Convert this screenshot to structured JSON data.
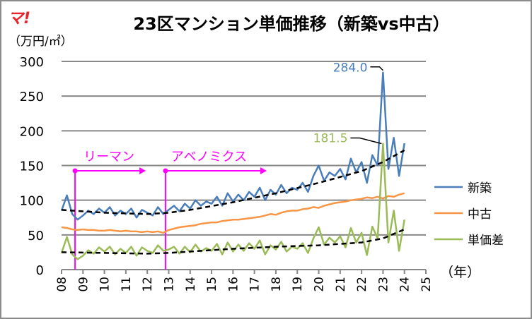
{
  "logo": "マ!",
  "chart_data": {
    "type": "line",
    "title": "23区マンション単価推移（新築vs中古）",
    "ylabel": "（万円/㎡）",
    "xlabel": "（年）",
    "ylim": [
      0,
      300
    ],
    "yticks": [
      0,
      50,
      100,
      150,
      200,
      250,
      300
    ],
    "xlim": [
      2008,
      2025
    ],
    "xtick_labels": [
      "08",
      "09",
      "10",
      "11",
      "12",
      "13",
      "14",
      "15",
      "16",
      "17",
      "18",
      "19",
      "20",
      "21",
      "22",
      "23",
      "24",
      "25"
    ],
    "grid": true,
    "legend_position": "right",
    "x_start": 2008,
    "x_step": 0.25,
    "series": [
      {
        "name": "新築",
        "color": "#4a7ebb",
        "values": [
          85,
          107,
          80,
          72,
          78,
          85,
          80,
          88,
          82,
          90,
          78,
          85,
          80,
          88,
          75,
          86,
          82,
          78,
          90,
          80,
          86,
          92,
          84,
          95,
          88,
          100,
          92,
          98,
          95,
          105,
          92,
          110,
          98,
          108,
          100,
          112,
          105,
          118,
          100,
          115,
          108,
          122,
          110,
          118,
          115,
          125,
          112,
          135,
          150,
          128,
          140,
          135,
          145,
          130,
          160,
          140,
          155,
          125,
          165,
          150,
          284,
          145,
          190,
          135,
          182
        ]
      },
      {
        "name": "中古",
        "color": "#f79646",
        "values": [
          61,
          60,
          58,
          57,
          58,
          57,
          57,
          56,
          56,
          57,
          56,
          55,
          56,
          55,
          55,
          54,
          55,
          54,
          55,
          53,
          57,
          59,
          61,
          62,
          63,
          64,
          66,
          67,
          68,
          68,
          70,
          71,
          72,
          72,
          73,
          74,
          75,
          76,
          78,
          80,
          79,
          82,
          84,
          85,
          85,
          87,
          88,
          90,
          89,
          92,
          94,
          96,
          97,
          98,
          100,
          101,
          102,
          104,
          103,
          105,
          102.5,
          106,
          105,
          108,
          110
        ]
      },
      {
        "name": "単価差",
        "color": "#9bbb59",
        "values": [
          24,
          47,
          22,
          15,
          20,
          28,
          23,
          32,
          26,
          33,
          22,
          30,
          24,
          33,
          20,
          32,
          27,
          24,
          35,
          27,
          29,
          33,
          23,
          33,
          25,
          36,
          26,
          31,
          27,
          37,
          22,
          39,
          26,
          36,
          27,
          38,
          30,
          42,
          22,
          35,
          29,
          40,
          26,
          33,
          30,
          38,
          24,
          45,
          61,
          36,
          46,
          39,
          48,
          32,
          60,
          39,
          53,
          21,
          62,
          45,
          181.5,
          39,
          85,
          27,
          72
        ]
      }
    ],
    "trendlines": [
      {
        "of": "新築",
        "x": [
          2008,
          2010,
          2012,
          2013,
          2014,
          2016,
          2018,
          2020,
          2022,
          2023,
          2024
        ],
        "values": [
          86,
          82,
          80,
          82,
          86,
          97,
          110,
          125,
          142,
          155,
          172
        ]
      },
      {
        "of": "単価差",
        "x": [
          2008,
          2010,
          2012,
          2013,
          2014,
          2016,
          2018,
          2020,
          2022,
          2023,
          2024
        ],
        "values": [
          25,
          24,
          23,
          24,
          26,
          30,
          33,
          35,
          39,
          45,
          58
        ]
      }
    ],
    "data_labels": [
      {
        "series": "新築",
        "x": 2023,
        "value": "284.0"
      },
      {
        "series": "単価差",
        "x": 2023,
        "value": "181.5"
      }
    ],
    "annotations": [
      {
        "text": "リーマン",
        "x": 2008.63,
        "color": "#ff00ff"
      },
      {
        "text": "アベノミクス",
        "x": 2012.85,
        "color": "#ff00ff"
      }
    ]
  }
}
